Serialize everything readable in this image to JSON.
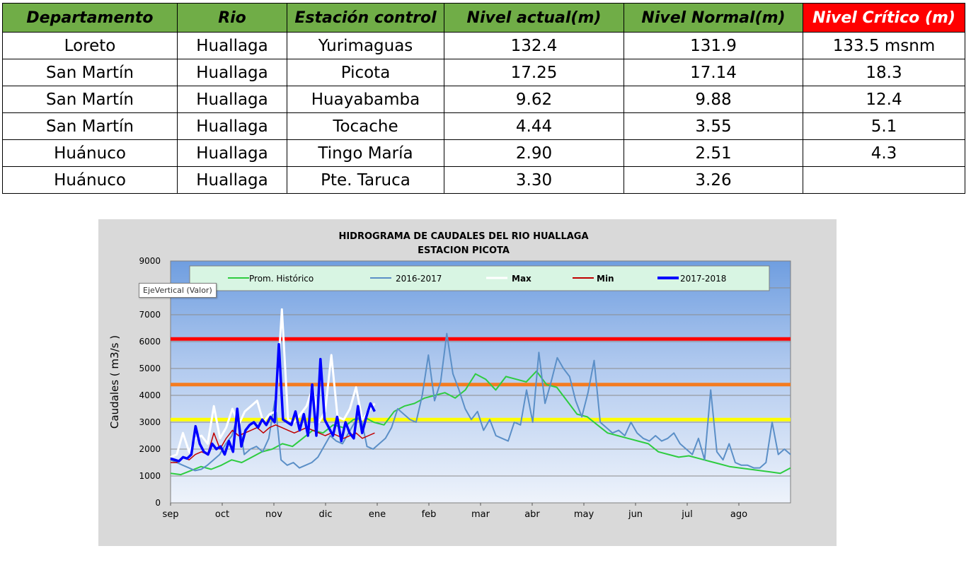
{
  "table": {
    "headers": [
      {
        "label": "Departamento"
      },
      {
        "label": "Rio"
      },
      {
        "label": "Estación control"
      },
      {
        "label": "Nivel actual(m)"
      },
      {
        "label": "Nivel Normal(m)"
      },
      {
        "label": "Nivel Crítico (m)",
        "color": "#ff0000"
      }
    ],
    "header_color": "#70ad47",
    "rows": [
      [
        "Loreto",
        "Huallaga",
        "Yurimaguas",
        "132.4",
        "131.9",
        "133.5 msnm"
      ],
      [
        "San Martín",
        "Huallaga",
        "Picota",
        "17.25",
        "17.14",
        "18.3"
      ],
      [
        "San Martín",
        "Huallaga",
        "Huayabamba",
        "9.62",
        "9.88",
        "12.4"
      ],
      [
        "San Martín",
        "Huallaga",
        "Tocache",
        "4.44",
        "3.55",
        "5.1"
      ],
      [
        "Huánuco",
        "Huallaga",
        "Tingo María",
        "2.90",
        "2.51",
        "4.3"
      ],
      [
        "Huánuco",
        "Huallaga",
        "Pte. Taruca",
        "3.30",
        "3.26",
        ""
      ]
    ]
  },
  "tooltip": "EjeVertical (Valor)",
  "chart_data": {
    "type": "line",
    "title": "HIDROGRAMA DE CAUDALES DEL RIO  HUALLAGA",
    "subtitle": "ESTACION PICOTA",
    "ylabel": "Caudales ( m3/s )",
    "xlabel": "",
    "ylim": [
      0,
      9000
    ],
    "yticks": [
      0,
      1000,
      2000,
      3000,
      4000,
      5000,
      6000,
      7000,
      8000,
      9000
    ],
    "xticks": [
      "sep",
      "oct",
      "nov",
      "dic",
      "ene",
      "feb",
      "mar",
      "abr",
      "may",
      "jun",
      "jul",
      "ago"
    ],
    "grid": true,
    "legend_position": "top",
    "thresholds": [
      {
        "value": 6100,
        "color": "#ff0000"
      },
      {
        "value": 4400,
        "color": "#f47b20"
      },
      {
        "value": 3100,
        "color": "#ffff00"
      }
    ],
    "series": [
      {
        "name": "Prom. Histórico",
        "color": "#2ecc40",
        "values": [
          1100,
          1050,
          1200,
          1350,
          1250,
          1400,
          1600,
          1500,
          1700,
          1900,
          2000,
          2200,
          2100,
          2400,
          2700,
          2600,
          2900,
          2800,
          3100,
          3200,
          3000,
          2900,
          3400,
          3600,
          3700,
          3900,
          4000,
          4100,
          3900,
          4200,
          4800,
          4600,
          4200,
          4700,
          4600,
          4500,
          4900,
          4400,
          4300,
          3800,
          3300,
          3200,
          2900,
          2600,
          2500,
          2400,
          2300,
          2200,
          1900,
          1800,
          1700,
          1750,
          1650,
          1550,
          1450,
          1350,
          1300,
          1250,
          1200,
          1150,
          1100,
          1300
        ]
      },
      {
        "name": "2016-2017",
        "color": "#5b8fc7",
        "values": [
          1600,
          1500,
          1400,
          1300,
          1200,
          1250,
          1400,
          1600,
          1800,
          2200,
          2500,
          3300,
          1800,
          2000,
          2100,
          1900,
          2400,
          3800,
          1600,
          1400,
          1500,
          1300,
          1400,
          1500,
          1700,
          2100,
          2500,
          2300,
          2200,
          2600,
          3000,
          3200,
          2100,
          2000,
          2200,
          2400,
          2800,
          3500,
          3300,
          3100,
          3000,
          4000,
          5500,
          3800,
          4500,
          6300,
          4800,
          4200,
          3500,
          3100,
          3400,
          2700,
          3100,
          2500,
          2400,
          2300,
          3000,
          2900,
          4200,
          3000,
          5600,
          3700,
          4500,
          5400,
          5000,
          4700,
          3800,
          3200,
          4100,
          5300,
          3000,
          2800,
          2600,
          2700,
          2500,
          3000,
          2600,
          2400,
          2300,
          2500,
          2300,
          2400,
          2600,
          2200,
          2000,
          1800,
          2400,
          1600,
          4200,
          1900,
          1600,
          2200,
          1500,
          1400,
          1400,
          1300,
          1300,
          1500,
          3000,
          1800,
          2000,
          1800
        ]
      },
      {
        "name": "Max",
        "color": "#ffffff",
        "values": [
          1700,
          1800,
          2600,
          1900,
          2400,
          2500,
          2200,
          3600,
          2400,
          2800,
          3500,
          2900,
          3400,
          3600,
          3800,
          3000,
          3300,
          3400,
          7200,
          3100,
          3000,
          3300,
          3600,
          4300,
          3000,
          3400,
          5500,
          3200,
          3100,
          3500,
          4300,
          3100,
          3400,
          3700
        ]
      },
      {
        "name": "Min",
        "color": "#c00000",
        "values": [
          1500,
          1500,
          1700,
          1600,
          1800,
          1900,
          1800,
          2600,
          2000,
          2400,
          2700,
          2500,
          2600,
          2700,
          2800,
          2600,
          2800,
          2900,
          2800,
          2700,
          2600,
          2700,
          2800,
          2700,
          2600,
          2500,
          2600,
          2500,
          2400,
          2500,
          2600,
          2400,
          2500,
          2600
        ]
      },
      {
        "name": "2017-2018",
        "color": "#0000ff",
        "values": [
          1650,
          1600,
          1550,
          1700,
          1650,
          1800,
          2850,
          2200,
          1900,
          1800,
          2200,
          2000,
          2100,
          1800,
          2300,
          1900,
          3500,
          2100,
          2700,
          2900,
          3000,
          2800,
          3100,
          2900,
          3200,
          3000,
          5900,
          3100,
          3000,
          2900,
          3400,
          2700,
          3300,
          2500,
          4400,
          2500,
          5350,
          3100,
          2800,
          2500,
          3200,
          2300,
          3000,
          2600,
          2400,
          3600,
          2600,
          3200,
          3700,
          3400
        ]
      }
    ]
  }
}
